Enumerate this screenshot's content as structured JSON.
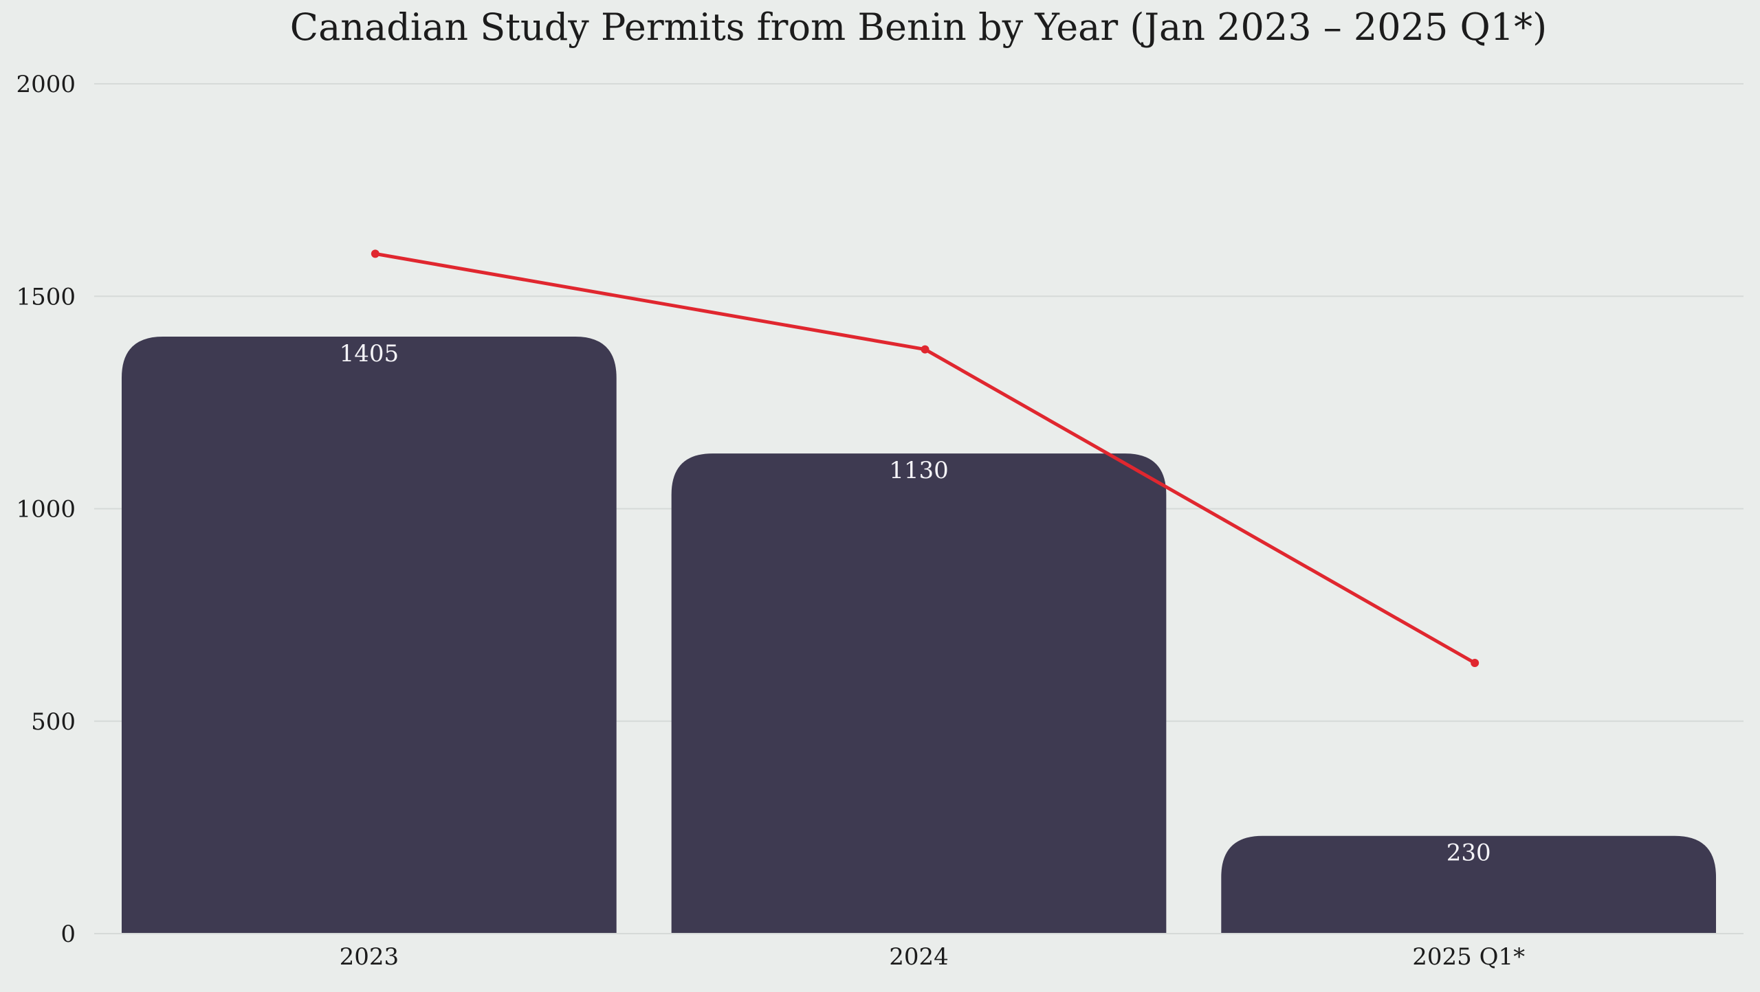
{
  "chart_data": {
    "type": "bar",
    "title": "Canadian Study Permits from Benin by Year (Jan 2023 – 2025 Q1*)",
    "xlabel": "",
    "ylabel": "",
    "categories": [
      "2023",
      "2024",
      "2025 Q1*"
    ],
    "series": [
      {
        "values": [
          1405,
          1130,
          230
        ],
        "mark": "bar",
        "color": "#3e3a51",
        "data_labels": [
          "1405",
          "1130",
          "230"
        ]
      },
      {
        "values": [
          1600,
          1375,
          637
        ],
        "mark": "line",
        "color": "#e0272f"
      }
    ],
    "ylim": [
      0,
      2000
    ],
    "yticks": [
      "0",
      "500",
      "1000",
      "1500",
      "2000"
    ],
    "grid": true,
    "legend": "none"
  },
  "colors": {
    "background": "#eaedeb",
    "bar": "#3e3a51",
    "line": "#e0272f",
    "grid": "#d6dad8",
    "text": "#1c1c1c",
    "bar_label": "#f4f3f7"
  }
}
